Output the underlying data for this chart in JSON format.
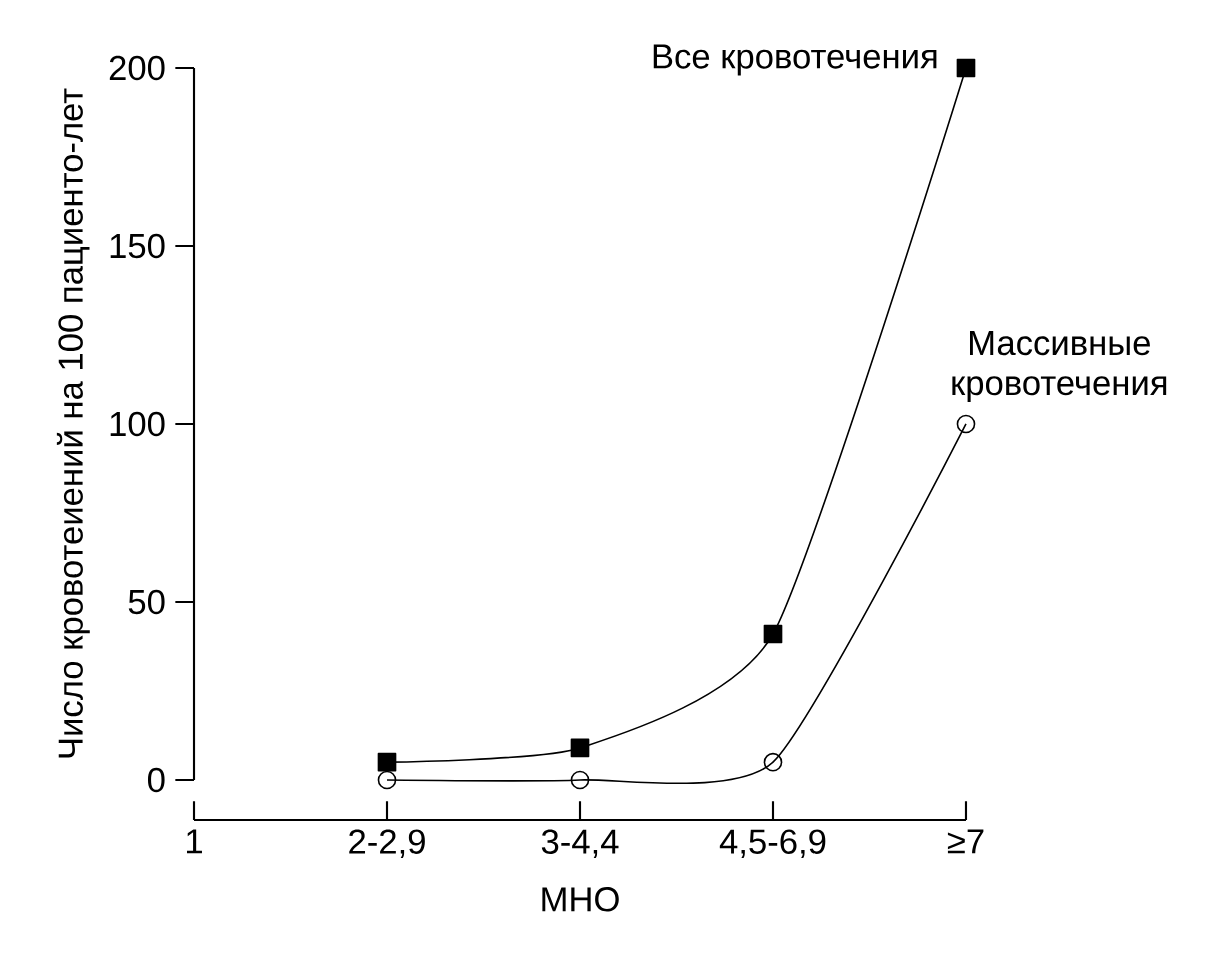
{
  "chart_data": {
    "type": "line",
    "xlabel": "МНО",
    "ylabel": "Число кровотеиений на 100 пациенто-лет",
    "categories": [
      "1",
      "2-2,9",
      "3-4,4",
      "4,5-6,9",
      "≥7"
    ],
    "ylim": [
      0,
      200
    ],
    "yticks": [
      0,
      50,
      100,
      150,
      200
    ],
    "series": [
      {
        "name": "Все кровотечения",
        "color": "#000000",
        "marker": "square",
        "values": [
          null,
          5,
          9,
          41,
          200
        ]
      },
      {
        "name": "Массивные кровотечения",
        "color": "#000000",
        "marker": "circle",
        "values": [
          null,
          0,
          0,
          5,
          100
        ]
      }
    ]
  }
}
